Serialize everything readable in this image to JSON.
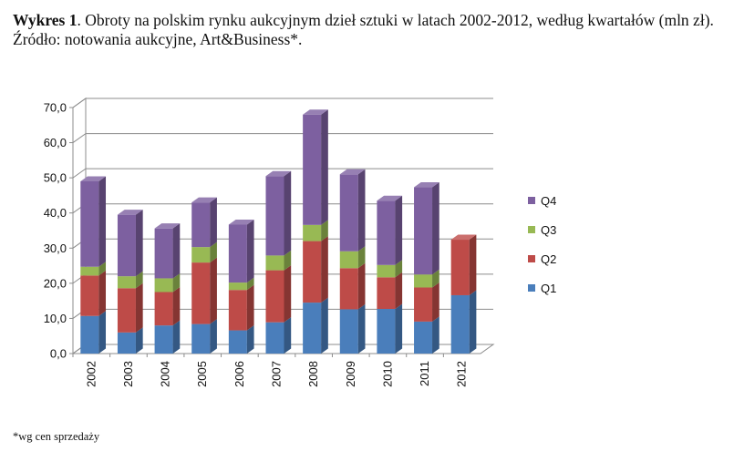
{
  "caption": {
    "label": "Wykres 1",
    "text": ". Obroty na polskim rynku aukcyjnym dzieł sztuki w latach 2002-2012, według kwartałów (mln zł). Źródło: notowania aukcyjne, Art&Business*."
  },
  "footnote": "*wg cen sprzedaży",
  "chart_data": {
    "type": "bar",
    "stacked": true,
    "three_d": true,
    "categories": [
      "2002",
      "2003",
      "2004",
      "2005",
      "2006",
      "2007",
      "2008",
      "2009",
      "2010",
      "2011",
      "2012"
    ],
    "series": [
      {
        "name": "Q1",
        "color": "#4a7ebb",
        "values": [
          10.7,
          6.0,
          8.0,
          8.4,
          6.6,
          8.9,
          14.5,
          12.6,
          12.7,
          9.1,
          16.6
        ]
      },
      {
        "name": "Q2",
        "color": "#be4b48",
        "values": [
          11.5,
          12.6,
          9.5,
          17.5,
          11.5,
          14.8,
          17.5,
          11.7,
          9.0,
          9.7,
          15.8
        ]
      },
      {
        "name": "Q3",
        "color": "#98b954",
        "values": [
          2.5,
          3.4,
          3.9,
          4.4,
          2.1,
          4.2,
          4.6,
          4.8,
          3.5,
          3.7,
          0
        ]
      },
      {
        "name": "Q4",
        "color": "#7d60a0",
        "values": [
          24.3,
          17.5,
          14.2,
          12.7,
          16.5,
          22.6,
          31.4,
          21.9,
          18.3,
          24.8,
          0
        ]
      }
    ],
    "ylim": [
      0,
      70
    ],
    "yticks": [
      "0,0",
      "10,0",
      "20,0",
      "30,0",
      "40,0",
      "50,0",
      "60,0",
      "70,0"
    ],
    "grid": true,
    "legend_position": "right"
  }
}
